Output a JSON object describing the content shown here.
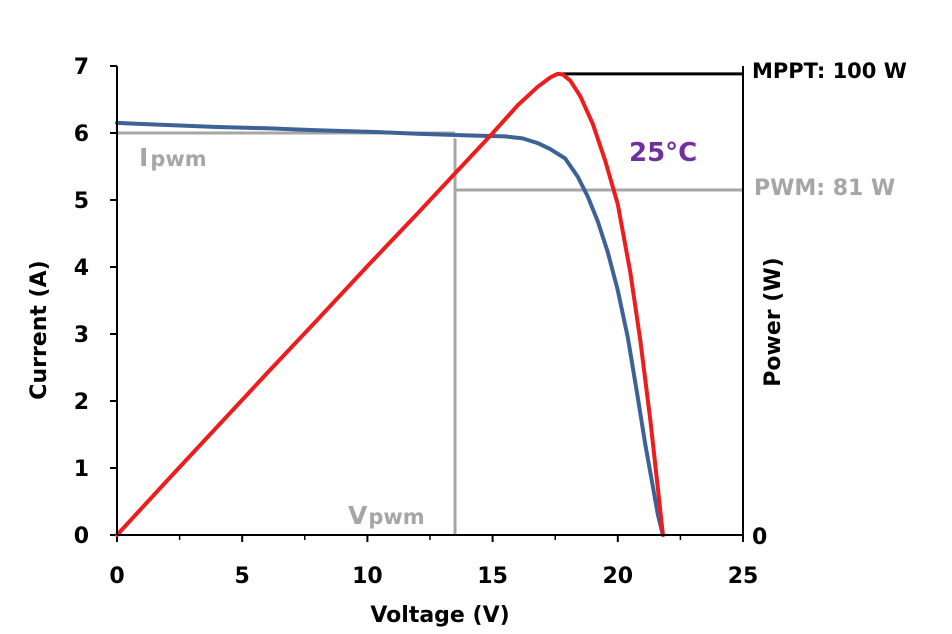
{
  "chart_data": {
    "type": "line",
    "xlabel": "Voltage (V)",
    "ylabel": "Current (A)",
    "y2label": "Power (W)",
    "xlim": [
      0,
      25
    ],
    "ylim": [
      0,
      7
    ],
    "xticks": [
      "0",
      "5",
      "10",
      "15",
      "20",
      "25"
    ],
    "yticks": [
      "0",
      "1",
      "2",
      "3",
      "4",
      "5",
      "6",
      "7"
    ],
    "y2ticks": [
      "0"
    ],
    "grid": false,
    "series": [
      {
        "kind": "current",
        "color": "#3c6296",
        "x": [
          0,
          2,
          4,
          6,
          8,
          10,
          12,
          13.5,
          14.5,
          15.5,
          16.2,
          16.8,
          17.3,
          17.9,
          18.4,
          18.8,
          19.2,
          19.6,
          20.0,
          20.4,
          20.8,
          21.1,
          21.4,
          21.6,
          21.8
        ],
        "y": [
          6.15,
          6.12,
          6.09,
          6.07,
          6.04,
          6.02,
          5.99,
          5.97,
          5.96,
          5.95,
          5.92,
          5.85,
          5.76,
          5.62,
          5.35,
          5.05,
          4.68,
          4.22,
          3.65,
          2.95,
          2.05,
          1.35,
          0.72,
          0.3,
          0
        ]
      },
      {
        "kind": "power",
        "color": "#ee1c1c",
        "x": [
          0,
          2,
          4,
          6,
          8,
          10,
          12,
          13.5,
          15,
          16,
          16.8,
          17.3,
          17.6,
          17.8,
          18.1,
          18.5,
          19.0,
          19.5,
          20.0,
          20.5,
          20.9,
          21.3,
          21.6,
          21.8
        ],
        "y": [
          0,
          1.76,
          3.5,
          5.24,
          6.96,
          8.7,
          10.4,
          11.7,
          13.0,
          13.9,
          14.5,
          14.8,
          14.92,
          14.9,
          14.7,
          14.2,
          13.3,
          12.1,
          10.7,
          8.5,
          6.3,
          3.7,
          1.5,
          0
        ]
      }
    ],
    "power_scale_max": 15,
    "pwm_point": {
      "voltage": 13.5,
      "current": 6.0
    },
    "mppt_power_level": 14.92,
    "pwm_power_level": 11.16,
    "annotations": {
      "mppt": "MPPT: 100 W",
      "pwm": "PWM: 81 W",
      "ipwm_main": "I",
      "ipwm_sub": "pwm",
      "vpwm_main": "V",
      "vpwm_sub": "pwm",
      "temperature": "25°C"
    },
    "colors": {
      "gray": "#a6a6a6",
      "axis": "#000000"
    }
  }
}
